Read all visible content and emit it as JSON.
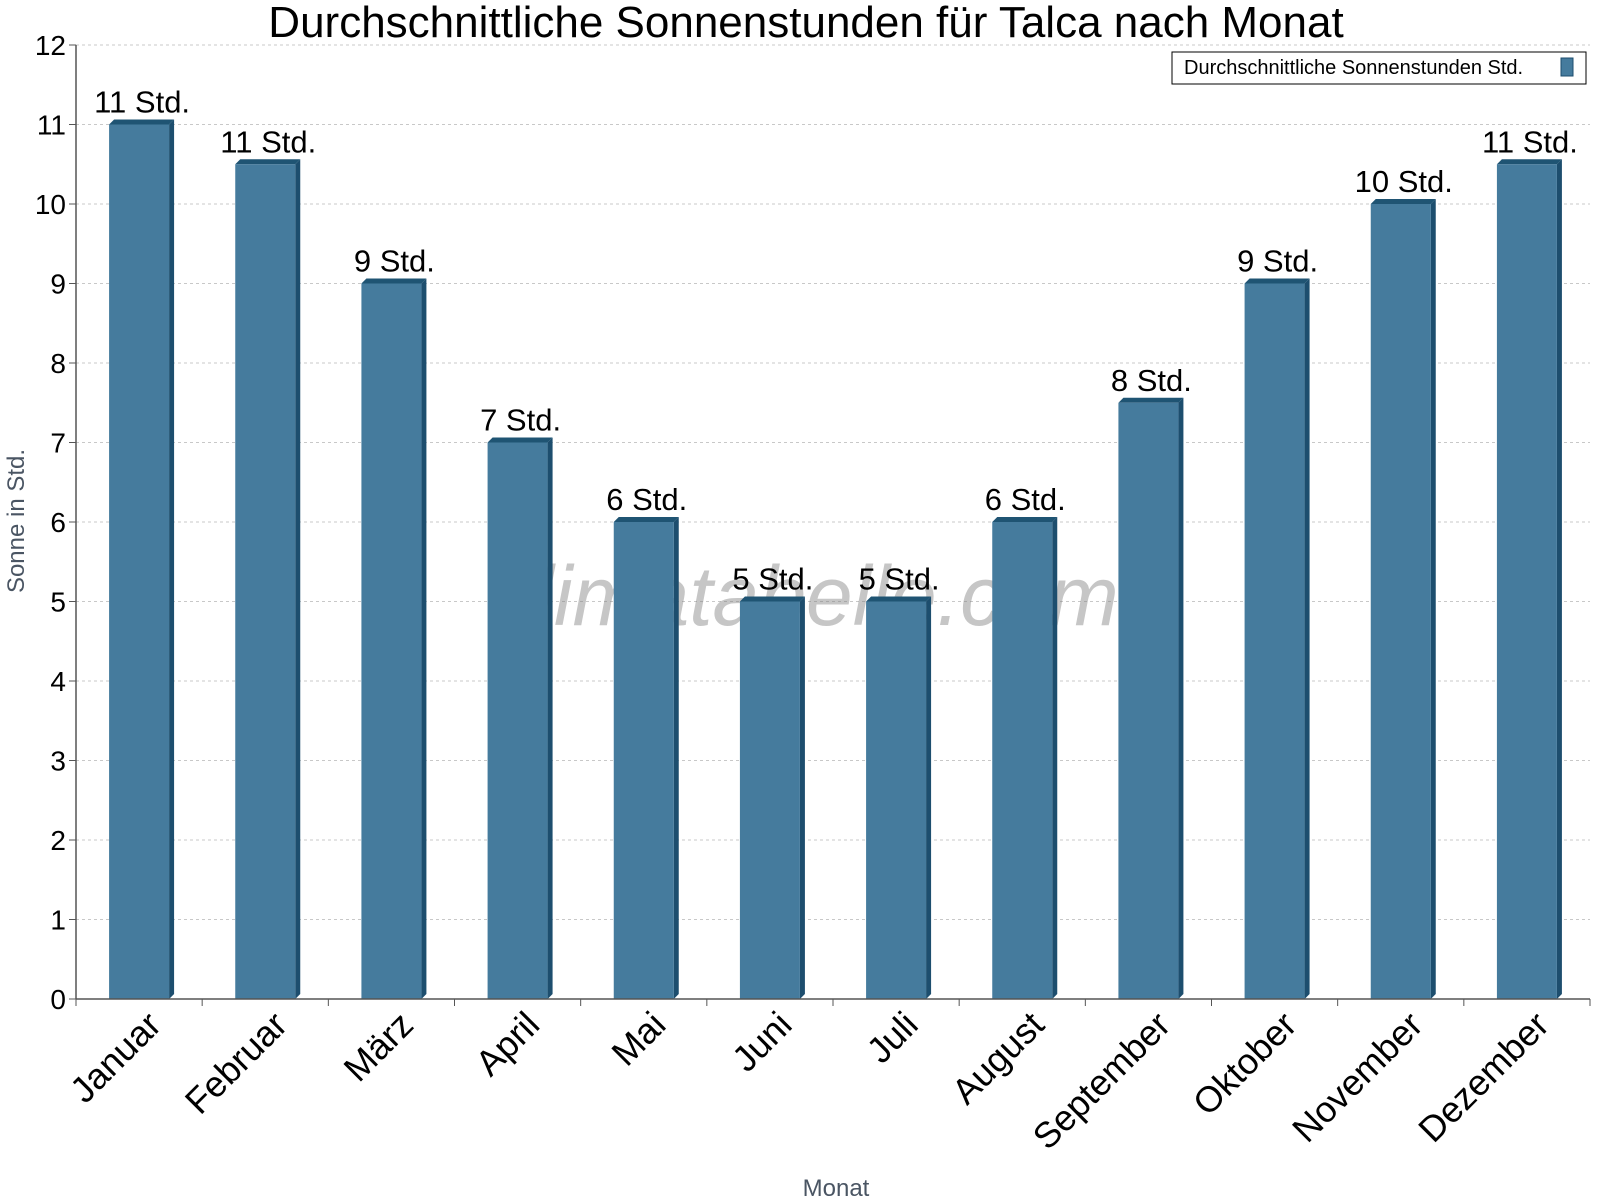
{
  "watermark": "klimatabelle.com",
  "colors": {
    "bar_front": "#457b9d",
    "bar_side": "#1d4e6e",
    "bar_top": "#1f5473",
    "grid": "#c8c8c8",
    "axis": "#555555"
  },
  "chart_data": {
    "type": "bar",
    "title": "Durchschnittliche Sonnenstunden für Talca nach Monat",
    "xlabel": "Monat",
    "ylabel": "Sonne in Std.",
    "ylim": [
      0,
      12
    ],
    "yticks": [
      0,
      1,
      2,
      3,
      4,
      5,
      6,
      7,
      8,
      9,
      10,
      11,
      12
    ],
    "grid": true,
    "legend_position": "top-right",
    "categories": [
      "Januar",
      "Februar",
      "März",
      "April",
      "Mai",
      "Juni",
      "Juli",
      "August",
      "September",
      "Oktober",
      "November",
      "Dezember"
    ],
    "series": [
      {
        "name": "Durchschnittliche Sonnenstunden Std.",
        "values": [
          11,
          10.5,
          9,
          7,
          6,
          5,
          5,
          6,
          7.5,
          9,
          10,
          10.5
        ],
        "labels": [
          "11 Std.",
          "11 Std.",
          "9 Std.",
          "7 Std.",
          "6 Std.",
          "5 Std.",
          "5 Std.",
          "6 Std.",
          "8 Std.",
          "9 Std.",
          "10 Std.",
          "11 Std."
        ]
      }
    ]
  }
}
